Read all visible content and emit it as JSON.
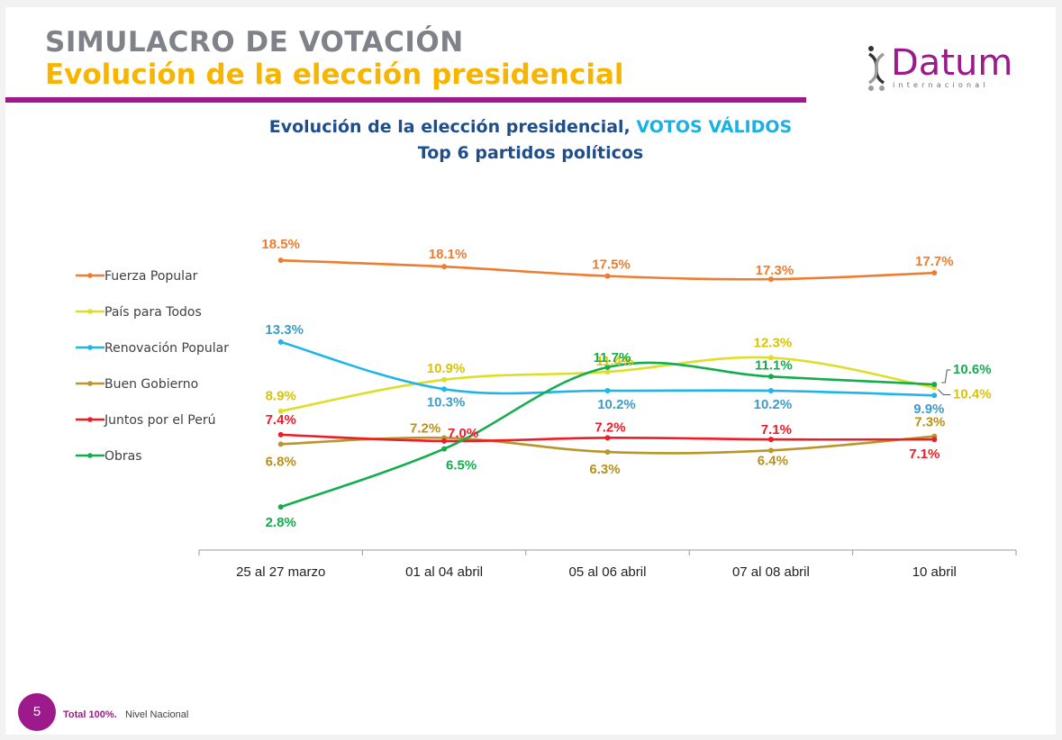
{
  "header": {
    "title": "SIMULACRO DE VOTACIÓN",
    "subtitle": "Evolución de la elección presidencial"
  },
  "logo": {
    "word": "Datum",
    "sub": "internacional",
    "color": "#9c1a8b"
  },
  "chart_title": {
    "main": "Evolución de la elección presidencial,",
    "highlight": "VOTOS VÁLIDOS",
    "sub": "Top 6 partidos políticos"
  },
  "chart_data": {
    "type": "line",
    "title": "Evolución de la elección presidencial, VOTOS VÁLIDOS",
    "subtitle": "Top 6 partidos políticos",
    "categories": [
      "25 al 27 marzo",
      "01 al 04 abril",
      "05 al 06 abril",
      "07 al 08 abril",
      "10 abril"
    ],
    "ylim": [
      0,
      20
    ],
    "grid": false,
    "legend": "left",
    "series": [
      {
        "name": "Fuerza Popular",
        "color": "#ed7d31",
        "values": [
          18.5,
          18.1,
          17.5,
          17.3,
          17.7
        ],
        "labels": [
          "18.5%",
          "18.1%",
          "17.5%",
          "17.3%",
          "17.7%"
        ]
      },
      {
        "name": "País para Todos",
        "color": "#dede2a",
        "label_color": "#d9c400",
        "values": [
          8.9,
          10.9,
          11.4,
          12.3,
          10.4
        ],
        "labels": [
          "8.9%",
          "10.9%",
          "11.4%",
          "12.3%",
          "10.4%"
        ]
      },
      {
        "name": "Renovación Popular",
        "color": "#1fb4ea",
        "label_color": "#3f9bc8",
        "values": [
          13.3,
          10.3,
          10.2,
          10.2,
          9.9
        ],
        "labels": [
          "13.3%",
          "10.3%",
          "10.2%",
          "10.2%",
          "9.9%"
        ]
      },
      {
        "name": "Buen Gobierno",
        "color": "#b8962b",
        "label_color": "#b8901c",
        "values": [
          6.8,
          7.2,
          6.3,
          6.4,
          7.3
        ],
        "labels": [
          "6.8%",
          "7.2%",
          "6.3%",
          "6.4%",
          "7.3%"
        ]
      },
      {
        "name": "Juntos por el Perú",
        "color": "#ee1c25",
        "values": [
          7.4,
          7.0,
          7.2,
          7.1,
          7.1
        ],
        "labels": [
          "7.4%",
          "7.0%",
          "7.2%",
          "7.1%",
          "7.1%"
        ]
      },
      {
        "name": "Obras",
        "color": "#13ad4e",
        "values": [
          2.8,
          6.5,
          11.7,
          11.1,
          10.6
        ],
        "labels": [
          "2.8%",
          "6.5%",
          "11.7%",
          "11.1%",
          "10.6%"
        ]
      }
    ]
  },
  "footer": {
    "page_number": "5",
    "total": "Total 100%.",
    "scope": "Nivel Nacional"
  }
}
